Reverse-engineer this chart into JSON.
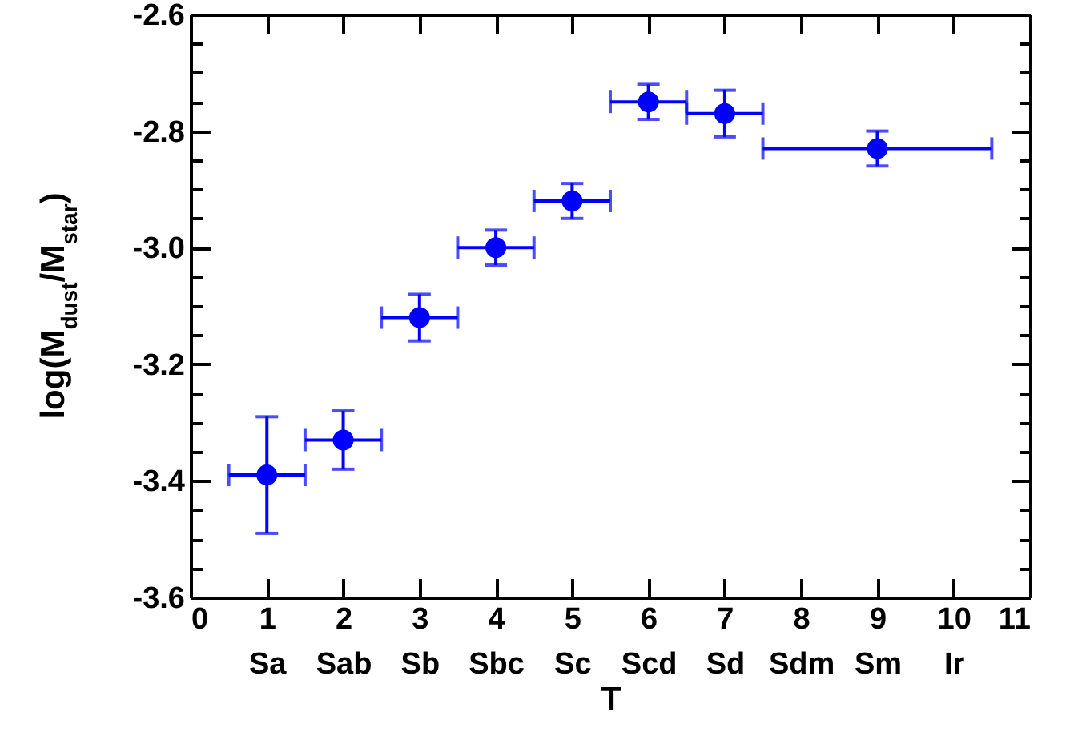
{
  "chart_data": {
    "type": "scatter",
    "xlabel": "T",
    "ylabel": "log(M$_{dust}$/M$_{star}$)",
    "x": [
      1,
      2,
      3,
      4,
      5,
      6,
      7,
      9
    ],
    "series": [
      {
        "color": "#0000ff",
        "values": [
          -3.39,
          -3.33,
          -3.12,
          -3.0,
          -2.92,
          -2.75,
          -2.77,
          -2.83
        ],
        "errors": [
          0.1,
          0.05,
          0.04,
          0.03,
          0.03,
          0.03,
          0.04,
          0.03
        ],
        "xerrors": [
          0.5,
          0.5,
          0.5,
          0.5,
          0.5,
          0.5,
          0.5,
          1.5
        ]
      }
    ],
    "xlim": [
      0,
      11
    ],
    "xticks": [
      0,
      {
        "value": 1,
        "label": "1\nSa"
      },
      {
        "value": 2,
        "label": "2\nSab"
      },
      {
        "value": 3,
        "label": "3\nSb"
      },
      {
        "value": 4,
        "label": "4\nSbc"
      },
      {
        "value": 5,
        "label": "5\nSc"
      },
      {
        "value": 6,
        "label": "6\nScd"
      },
      {
        "value": 7,
        "label": "7\nSd"
      },
      {
        "value": 8,
        "label": "8\nSdm"
      },
      {
        "value": 9,
        "label": "9\nSm"
      },
      {
        "value": 10,
        "label": "10\nIr"
      },
      11
    ],
    "ylim": [
      -3.6,
      -2.6
    ],
    "yticks": [
      {
        "value": -3.6,
        "label": "-3.6"
      },
      {
        "value": -3.55,
        "label": null
      },
      {
        "value": -3.5,
        "label": null
      },
      {
        "value": -3.45,
        "label": null
      },
      {
        "value": -3.4,
        "label": "-3.4"
      },
      {
        "value": -3.35,
        "label": null
      },
      {
        "value": -3.3,
        "label": null
      },
      {
        "value": -3.25,
        "label": null
      },
      {
        "value": -3.2,
        "label": "-3.2"
      },
      {
        "value": -3.15,
        "label": null
      },
      {
        "value": -3.1,
        "label": null
      },
      {
        "value": -3.05,
        "label": null
      },
      {
        "value": -3.0,
        "label": "-3.0"
      },
      {
        "value": -2.95,
        "label": null
      },
      {
        "value": -2.9,
        "label": null
      },
      {
        "value": -2.85,
        "label": null
      },
      {
        "value": -2.8,
        "label": "-2.8"
      },
      {
        "value": -2.75,
        "label": null
      },
      {
        "value": -2.7,
        "label": null
      },
      {
        "value": -2.65,
        "label": null
      },
      {
        "value": -2.6,
        "label": "-2.6"
      }
    ],
    "marker": "circle",
    "grid": false
  }
}
